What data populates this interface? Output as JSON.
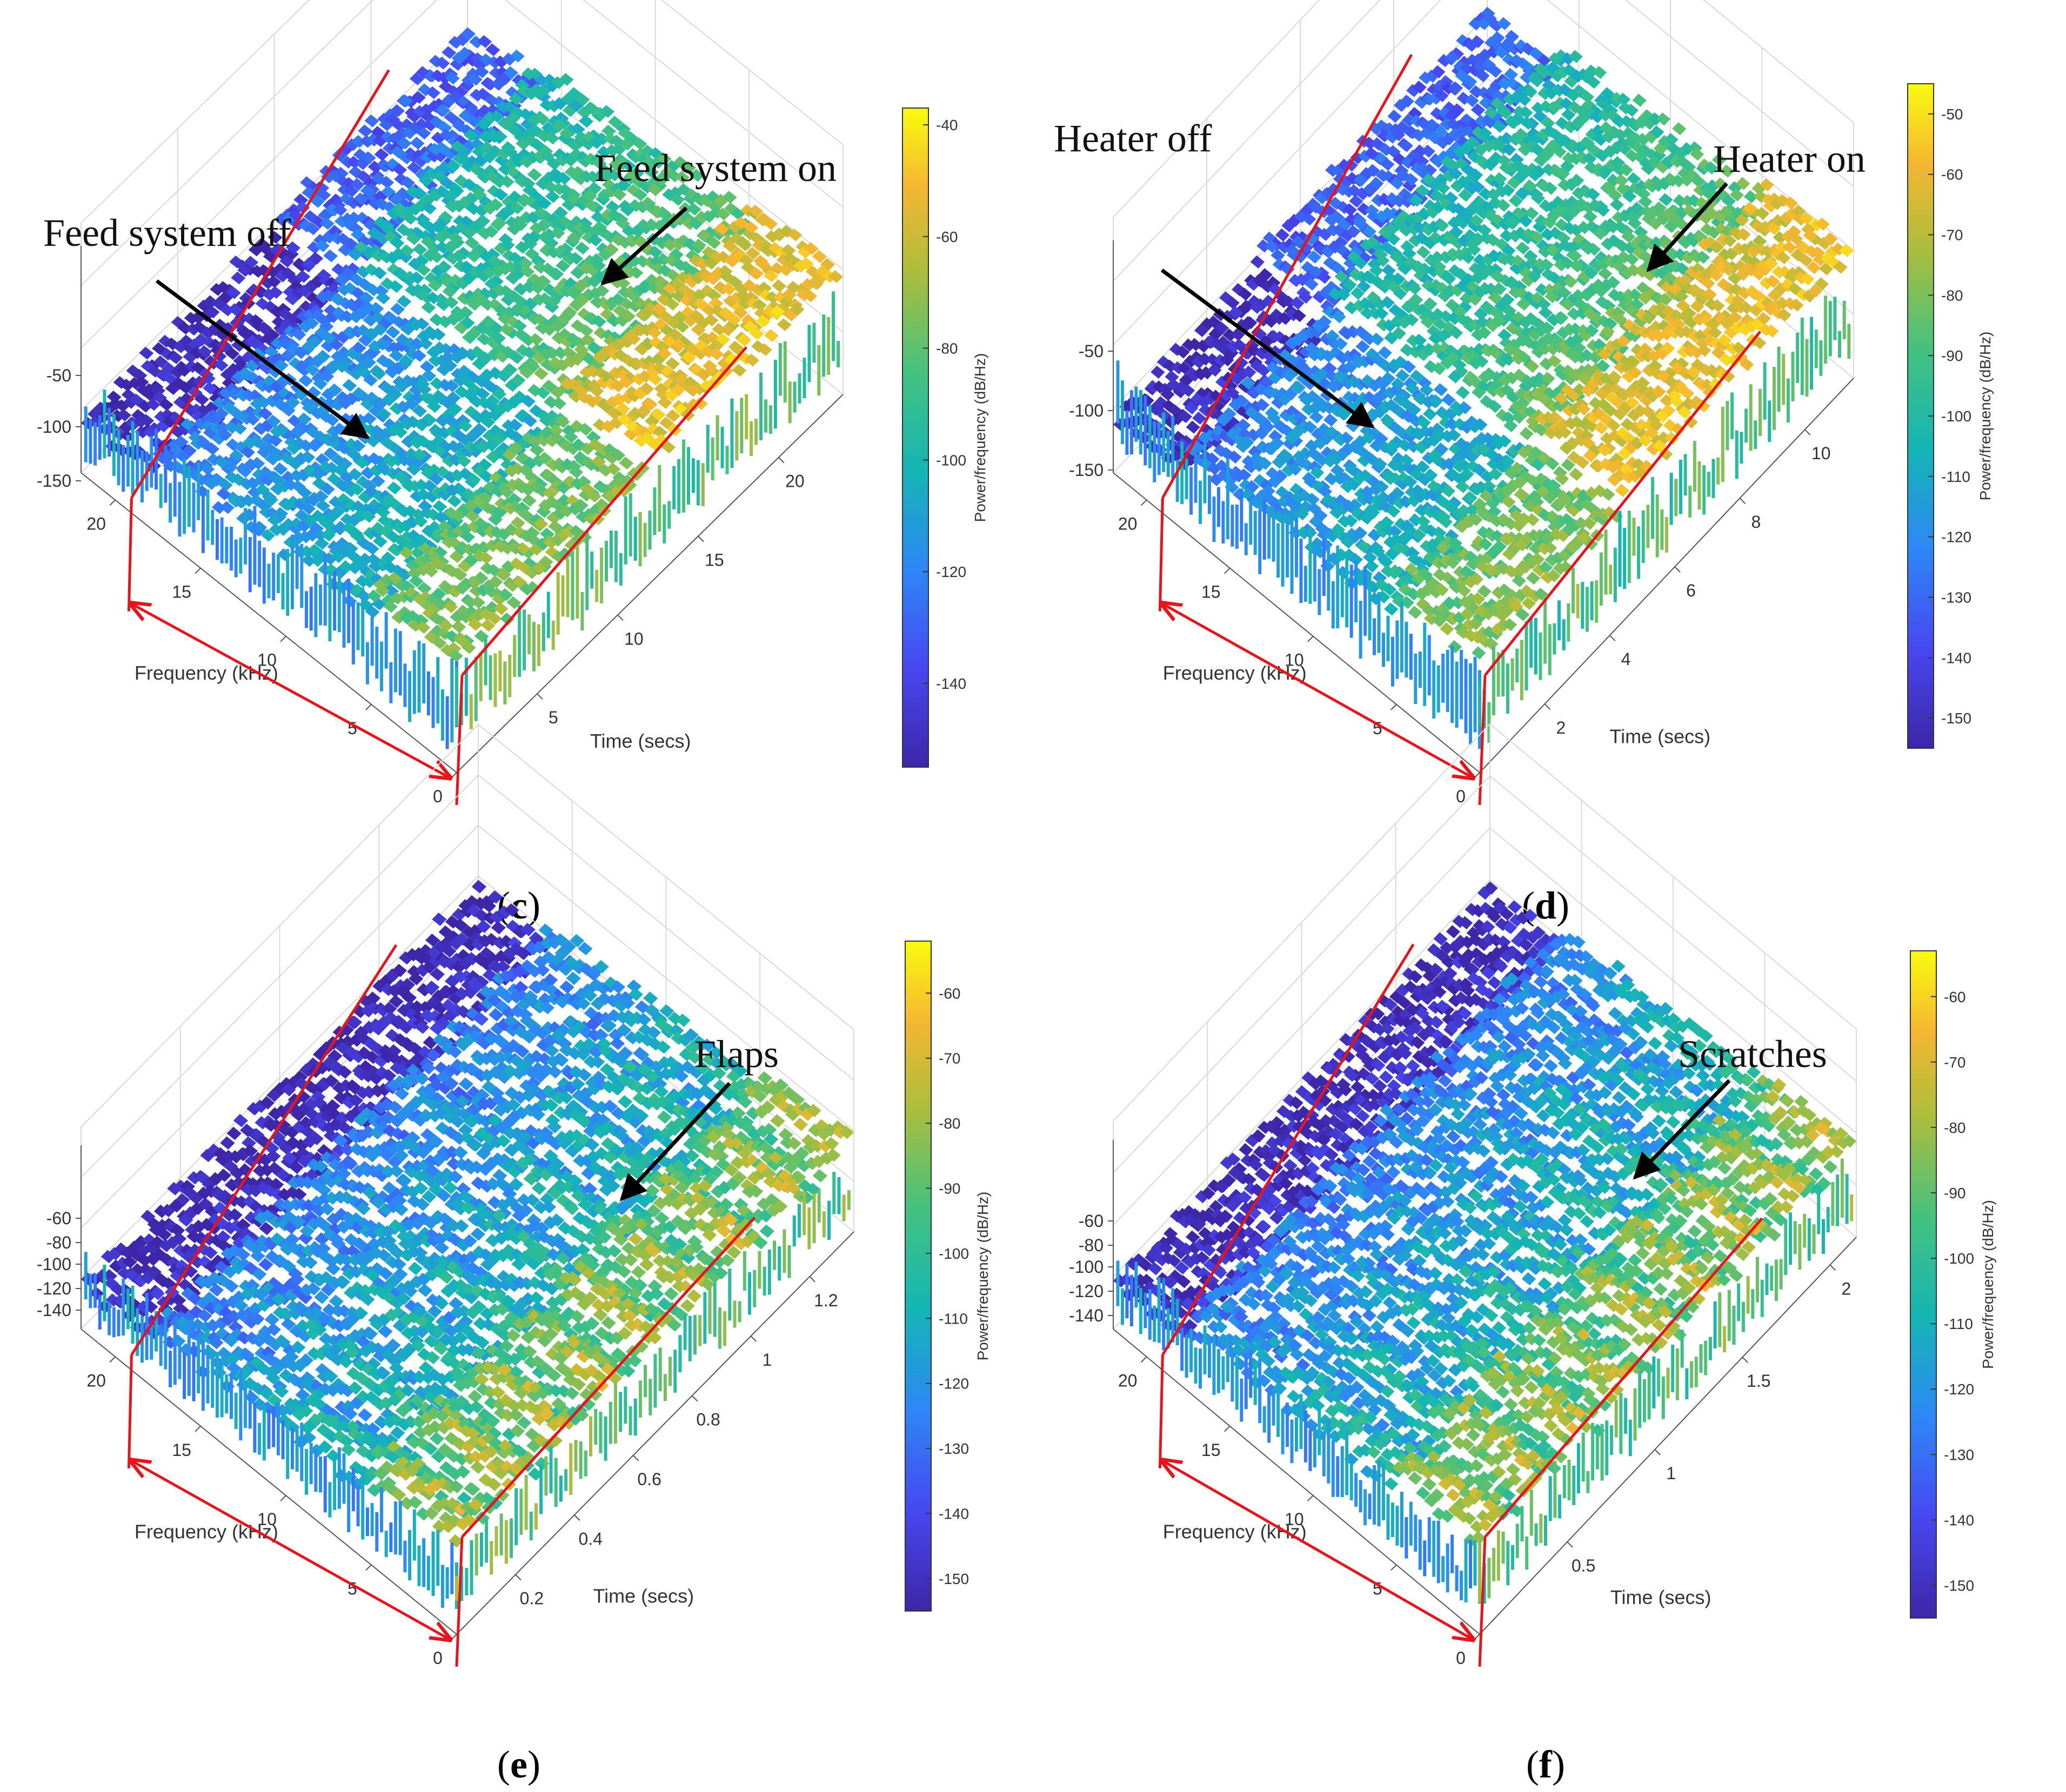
{
  "chart_data": [
    {
      "panel": "c",
      "type": "surface",
      "xlabel": "Frequency (kHz)",
      "ylabel": "Time (secs)",
      "zlabel": "",
      "cbar_label": "Power/frequency (dB/Hz)",
      "freq_ticks": [
        "0",
        "5",
        "10",
        "15",
        "20"
      ],
      "time_ticks": [
        "5",
        "10",
        "15",
        "20"
      ],
      "z_ticks": [
        "-50",
        "-100",
        "-150"
      ],
      "cbar_ticks": [
        "-40",
        "-60",
        "-80",
        "-100",
        "-120",
        "-140"
      ],
      "cbar_range": [
        -155,
        -37
      ],
      "time_range": [
        0,
        24
      ],
      "freq_range": [
        0,
        22
      ],
      "annotations": [
        "Feed system off",
        "Feed system on"
      ],
      "event_time": 12
    },
    {
      "panel": "d",
      "type": "surface",
      "xlabel": "Frequency (kHz)",
      "ylabel": "Time (secs)",
      "zlabel": "",
      "cbar_label": "Power/frequency (dB/Hz)",
      "freq_ticks": [
        "0",
        "5",
        "10",
        "15",
        "20"
      ],
      "time_ticks": [
        "2",
        "4",
        "6",
        "8",
        "10"
      ],
      "z_ticks": [
        "-50",
        "-100",
        "-150"
      ],
      "cbar_ticks": [
        "-50",
        "-60",
        "-70",
        "-80",
        "-90",
        "-100",
        "-110",
        "-120",
        "-130",
        "-140",
        "-150"
      ],
      "cbar_range": [
        -155,
        -45
      ],
      "time_range": [
        0,
        11.5
      ],
      "freq_range": [
        0,
        22
      ],
      "annotations": [
        "Heater off",
        "Heater on"
      ],
      "event_time": 4.5
    },
    {
      "panel": "e",
      "type": "surface",
      "xlabel": "Frequency (kHz)",
      "ylabel": "Time (secs)",
      "zlabel": "",
      "cbar_label": "Power/frequency (dB/Hz)",
      "freq_ticks": [
        "0",
        "5",
        "10",
        "15",
        "20"
      ],
      "time_ticks": [
        "0.2",
        "0.4",
        "0.6",
        "0.8",
        "1",
        "1.2"
      ],
      "z_ticks": [
        "-60",
        "-80",
        "-100",
        "-120",
        "-140"
      ],
      "cbar_ticks": [
        "-60",
        "-70",
        "-80",
        "-90",
        "-100",
        "-110",
        "-120",
        "-130",
        "-140",
        "-150"
      ],
      "cbar_range": [
        -155,
        -52
      ],
      "time_range": [
        0,
        1.35
      ],
      "freq_range": [
        0,
        22
      ],
      "annotations": [
        "Flaps"
      ]
    },
    {
      "panel": "f",
      "type": "surface",
      "xlabel": "Frequency (kHz)",
      "ylabel": "Time (secs)",
      "zlabel": "",
      "cbar_label": "Power/frequency (dB/Hz)",
      "freq_ticks": [
        "0",
        "5",
        "10",
        "15",
        "20"
      ],
      "time_ticks": [
        "0.5",
        "1",
        "1.5",
        "2"
      ],
      "z_ticks": [
        "-60",
        "-80",
        "-100",
        "-120",
        "-140"
      ],
      "cbar_ticks": [
        "-60",
        "-70",
        "-80",
        "-90",
        "-100",
        "-110",
        "-120",
        "-130",
        "-140",
        "-150"
      ],
      "cbar_range": [
        -155,
        -53
      ],
      "time_range": [
        0,
        2.15
      ],
      "freq_range": [
        0,
        22
      ],
      "annotations": [
        "Scratches"
      ]
    }
  ],
  "colors": {
    "parula_low": "#3e26a8",
    "parula_mid": "#14b5b5",
    "parula_high": "#f9fb0e",
    "marker_red": "#e8141c",
    "grid": "#d9d9d9"
  }
}
